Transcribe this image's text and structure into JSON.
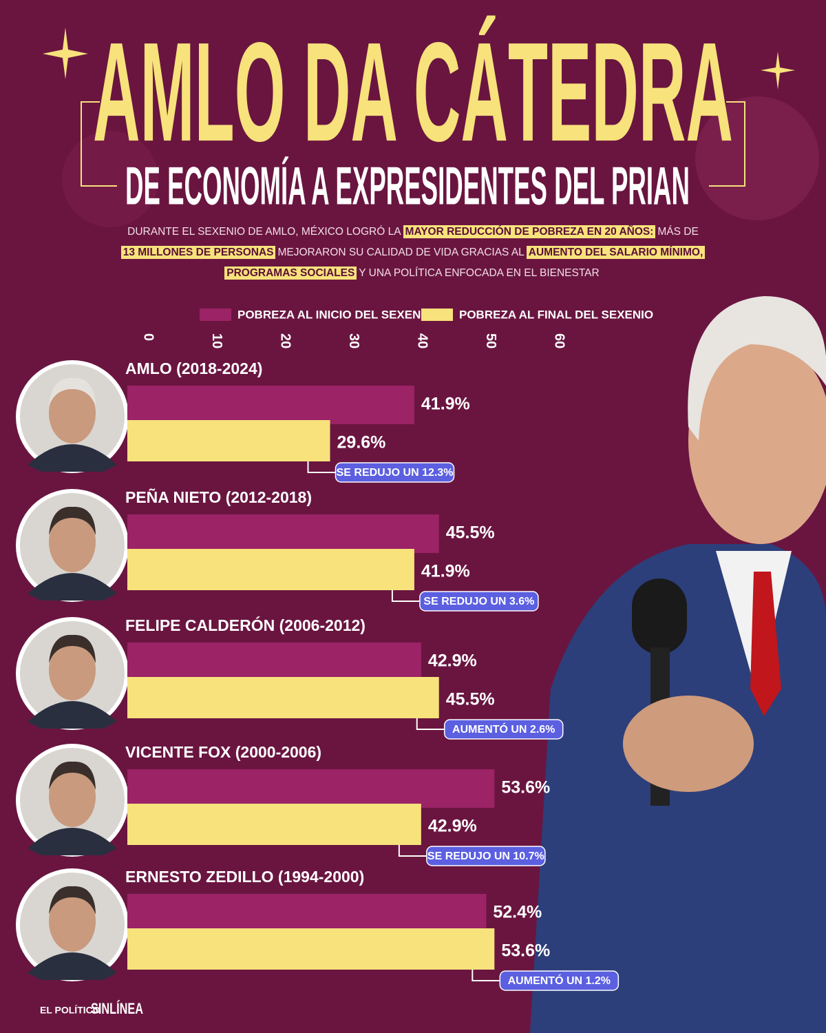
{
  "chart_data": {
    "type": "bar",
    "orientation": "horizontal",
    "title": "AMLO DA CÁTEDRA",
    "subtitle": "DE ECONOMÍA A EXPRESIDENTES DEL PRIAN",
    "description": [
      [
        {
          "text": "DURANTE EL SEXENIO DE AMLO, MÉXICO LOGRÓ LA",
          "highlight": false
        },
        {
          "text": "MAYOR REDUCCIÓN DE POBREZA EN 20 AÑOS:",
          "highlight": true
        },
        {
          "text": "MÁS DE",
          "highlight": false
        }
      ],
      [
        {
          "text": "13 MILLONES DE PERSONAS",
          "highlight": true
        },
        {
          "text": "MEJORARON SU CALIDAD DE VIDA GRACIAS AL",
          "highlight": false
        },
        {
          "text": "AUMENTO DEL SALARIO MÍNIMO,",
          "highlight": true
        }
      ],
      [
        {
          "text": "PROGRAMAS SOCIALES",
          "highlight": true
        },
        {
          "text": "Y UNA POLÍTICA ENFOCADA EN EL BIENESTAR",
          "highlight": false
        }
      ]
    ],
    "categories": [
      "AMLO (2018-2024)",
      "PEÑA NIETO (2012-2018)",
      "FELIPE CALDERÓN (2006-2012)",
      "VICENTE FOX (2000-2006)",
      "ERNESTO ZEDILLO (1994-2000)"
    ],
    "series": [
      {
        "name": "POBREZA AL INICIO DEL SEXENIO",
        "color": "#9b2366",
        "values": [
          41.9,
          45.5,
          42.9,
          53.6,
          52.4
        ],
        "value_labels": [
          "41.9%",
          "45.5%",
          "42.9%",
          "53.6%",
          "52.4%"
        ]
      },
      {
        "name": "POBREZA AL FINAL DEL SEXENIO",
        "color": "#f7e27c",
        "values": [
          29.6,
          41.9,
          45.5,
          42.9,
          53.6
        ],
        "value_labels": [
          "29.6%",
          "41.9%",
          "45.5%",
          "42.9%",
          "53.6%"
        ]
      }
    ],
    "annotations": [
      "SE REDUJO UN 12.3%",
      "SE REDUJO UN 3.6%",
      "AUMENTÓ UN 2.6%",
      "SE REDUJO UN 10.7%",
      "AUMENTÓ UN 1.2%"
    ],
    "xlim": [
      0,
      60
    ],
    "xticks": [
      0,
      10,
      20,
      30,
      40,
      50,
      60
    ],
    "logos": [
      "EL POLÍTICO",
      "SINLÍNEA"
    ]
  }
}
